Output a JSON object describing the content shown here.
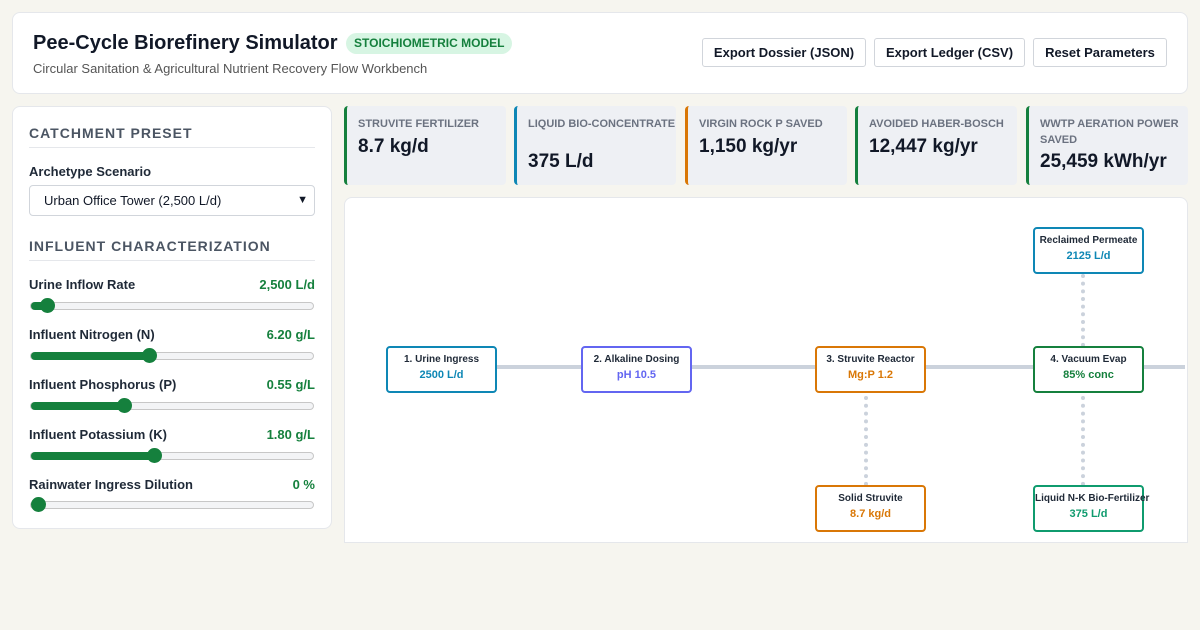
{
  "header": {
    "title": "Pee-Cycle Biorefinery Simulator",
    "badge": "STOICHIOMETRIC MODEL",
    "subtitle": "Circular Sanitation & Agricultural Nutrient Recovery Flow Workbench",
    "buttons": {
      "export_dossier": "Export Dossier (JSON)",
      "export_ledger": "Export Ledger (CSV)",
      "reset": "Reset Parameters"
    }
  },
  "sidebar": {
    "preset_title": "CATCHMENT PRESET",
    "scenario_label": "Archetype Scenario",
    "scenario_value": "Urban Office Tower (2,500 L/d)",
    "influent_title": "INFLUENT CHARACTERIZATION",
    "sliders": [
      {
        "label": "Urine Inflow Rate",
        "value": "2,500 L/d",
        "level": 0.055
      },
      {
        "label": "Influent Nitrogen (N)",
        "value": "6.20 g/L",
        "level": 0.42
      },
      {
        "label": "Influent Phosphorus (P)",
        "value": "0.55 g/L",
        "level": 0.33
      },
      {
        "label": "Influent Potassium (K)",
        "value": "1.80 g/L",
        "level": 0.435
      },
      {
        "label": "Rainwater Ingress Dilution",
        "value": "0 %",
        "level": 0.0
      }
    ]
  },
  "kpis": [
    {
      "label": "STRUVITE FERTILIZER",
      "value": "8.7 kg/d",
      "color": "#15803d"
    },
    {
      "label": "LIQUID BIO-CONCENTRATE",
      "value": "375 L/d",
      "color": "#0e87b5"
    },
    {
      "label": "VIRGIN ROCK P SAVED",
      "value": "1,150 kg/yr",
      "color": "#d97706"
    },
    {
      "label": "AVOIDED HABER-BOSCH",
      "value": "12,447 kg/yr",
      "color": "#15803d"
    },
    {
      "label": "WWTP AERATION POWER SAVED",
      "value": "25,459 kWh/yr",
      "color": "#15803d"
    }
  ],
  "flow": {
    "nodes": {
      "urine": {
        "title": "1. Urine Ingress",
        "value": "2500 L/d",
        "color": "#0e87b5"
      },
      "dosing": {
        "title": "2. Alkaline Dosing",
        "value": "pH 10.5",
        "color": "#6366f1"
      },
      "reactor": {
        "title": "3. Struvite Reactor",
        "value": "Mg:P 1.2",
        "color": "#d97706"
      },
      "evap": {
        "title": "4. Vacuum Evap",
        "value": "85% conc",
        "color": "#15803d"
      },
      "permeate": {
        "title": "Reclaimed Permeate",
        "value": "2125 L/d",
        "color": "#0e87b5"
      },
      "struvite": {
        "title": "Solid Struvite",
        "value": "8.7 kg/d",
        "color": "#d97706"
      },
      "liquid": {
        "title": "Liquid N-K Bio-Fertilizer",
        "value": "375 L/d",
        "color": "#0f9b6e"
      }
    }
  }
}
